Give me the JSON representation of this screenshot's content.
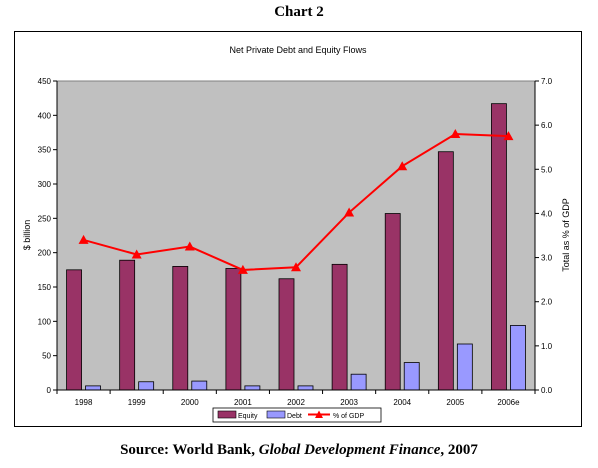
{
  "page": {
    "heading": "Chart 2",
    "source_prefix": "Source: World Bank, ",
    "source_title": "Global Development Finance",
    "source_suffix": ", 2007"
  },
  "colors": {
    "equity": "#993366",
    "debt": "#9999ff",
    "gdp_line": "#ff0000",
    "plot_bg": "#c0c0c0"
  },
  "chart_data": {
    "type": "bar",
    "title": "Net Private Debt and Equity Flows",
    "ylabel": "$ billion",
    "y2label": "Total as % of GDP",
    "categories": [
      "1998",
      "1999",
      "2000",
      "2001",
      "2002",
      "2003",
      "2004",
      "2005",
      "2006e"
    ],
    "ylim": [
      0,
      450
    ],
    "yticks": [
      "0",
      "50",
      "100",
      "150",
      "200",
      "250",
      "300",
      "350",
      "400",
      "450"
    ],
    "y2lim": [
      0,
      7
    ],
    "y2ticks": [
      "0.0",
      "1.0",
      "2.0",
      "3.0",
      "4.0",
      "5.0",
      "6.0",
      "7.0"
    ],
    "series": [
      {
        "name": "Equity",
        "kind": "bar",
        "axis": "left",
        "values": [
          175,
          189,
          180,
          177,
          162,
          183,
          257,
          347,
          417
        ]
      },
      {
        "name": "Debt",
        "kind": "bar",
        "axis": "left",
        "values": [
          6,
          12,
          13,
          6,
          6,
          23,
          40,
          67,
          94
        ]
      },
      {
        "name": "% of GDP",
        "kind": "line",
        "axis": "right",
        "marker": "triangle",
        "values": [
          3.4,
          3.07,
          3.25,
          2.72,
          2.78,
          4.02,
          5.07,
          5.8,
          5.75
        ]
      }
    ],
    "legend": "bottom",
    "grid": false
  }
}
